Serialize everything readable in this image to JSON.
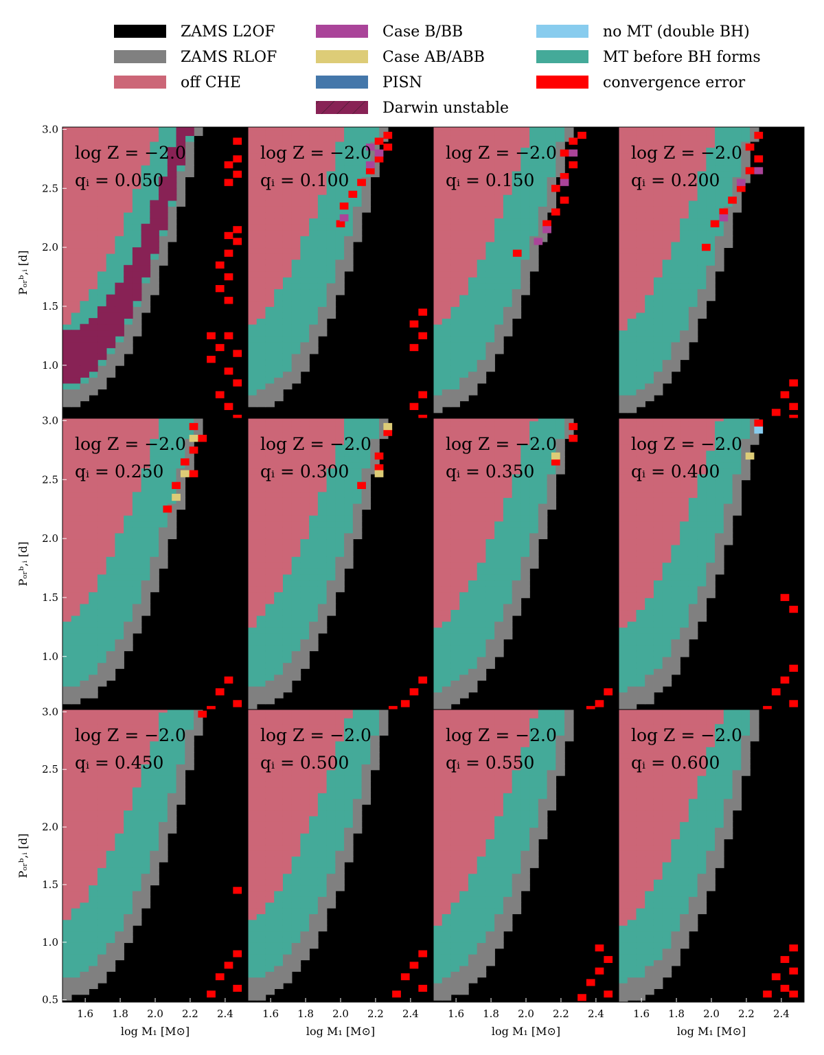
{
  "legend": [
    {
      "key": "zams_l2of",
      "label": "ZAMS L2OF",
      "color": "#000000"
    },
    {
      "key": "zams_rlof",
      "label": "ZAMS RLOF",
      "color": "#808080"
    },
    {
      "key": "off_che",
      "label": "off CHE",
      "color": "#cc6677"
    },
    {
      "key": "case_b",
      "label": "Case B/BB",
      "color": "#aa4499"
    },
    {
      "key": "case_ab",
      "label": "Case AB/ABB",
      "color": "#ddcc77"
    },
    {
      "key": "pisn",
      "label": "PISN",
      "color": "#4477aa"
    },
    {
      "key": "darwin",
      "label": "Darwin unstable",
      "color": "#882255"
    },
    {
      "key": "no_mt",
      "label": "no MT (double BH)",
      "color": "#88ccee"
    },
    {
      "key": "mt_before_bh",
      "label": "MT before BH forms",
      "color": "#44aa99"
    },
    {
      "key": "conv_error",
      "label": "convergence error",
      "color": "#ff0000"
    }
  ],
  "chart_data": {
    "type": "heatmap",
    "x_label": "log M₁ [M⊙]",
    "y_label": "Pₒᵣᵇ,ᵢ [d]",
    "x_range": [
      1.47,
      2.53
    ],
    "y_range": [
      0.48,
      3.02
    ],
    "x_ticks": [
      "1.6",
      "1.8",
      "2.0",
      "2.2",
      "2.4"
    ],
    "x_tick_values": [
      1.6,
      1.8,
      2.0,
      2.2,
      2.4
    ],
    "y_ticks_top": [
      "1.0",
      "1.5",
      "2.0",
      "2.5",
      "3.0"
    ],
    "y_ticks_bottom": [
      "0.5",
      "1.0",
      "1.5",
      "2.0",
      "2.5",
      "3.0"
    ],
    "y_tick_values_top": [
      1.0,
      1.5,
      2.0,
      2.5,
      3.0
    ],
    "y_tick_values_bottom": [
      0.5,
      1.0,
      1.5,
      2.0,
      2.5,
      3.0
    ],
    "grid": false,
    "legend_position": "top",
    "panels": [
      {
        "logZ": "log Z = −2.0",
        "q": "qᵢ = 0.050",
        "q_value": 0.05,
        "darwin": true,
        "errors": [
          [
            2.47,
            2.9
          ],
          [
            2.47,
            2.75
          ],
          [
            2.42,
            2.7
          ],
          [
            2.47,
            2.62
          ],
          [
            2.42,
            2.55
          ],
          [
            2.47,
            2.15
          ],
          [
            2.42,
            2.1
          ],
          [
            2.47,
            2.05
          ],
          [
            2.42,
            1.95
          ],
          [
            2.37,
            1.85
          ],
          [
            2.42,
            1.75
          ],
          [
            2.37,
            1.65
          ],
          [
            2.42,
            1.55
          ],
          [
            2.32,
            1.25
          ],
          [
            2.42,
            1.25
          ],
          [
            2.37,
            1.15
          ],
          [
            2.47,
            1.1
          ],
          [
            2.32,
            1.05
          ],
          [
            2.42,
            0.95
          ],
          [
            2.47,
            0.85
          ],
          [
            2.37,
            0.75
          ],
          [
            2.42,
            0.65
          ],
          [
            2.47,
            0.55
          ]
        ],
        "caseB": []
      },
      {
        "logZ": "log Z = −2.0",
        "q": "qᵢ = 0.100",
        "q_value": 0.1,
        "darwin": false,
        "errors": [
          [
            2.27,
            2.95
          ],
          [
            2.22,
            2.9
          ],
          [
            2.27,
            2.85
          ],
          [
            2.22,
            2.75
          ],
          [
            2.17,
            2.65
          ],
          [
            2.12,
            2.55
          ],
          [
            2.07,
            2.45
          ],
          [
            2.02,
            2.35
          ],
          [
            2.0,
            2.2
          ],
          [
            2.47,
            1.45
          ],
          [
            2.42,
            1.35
          ],
          [
            2.47,
            1.25
          ],
          [
            2.42,
            1.15
          ],
          [
            2.47,
            0.75
          ],
          [
            2.42,
            0.65
          ],
          [
            2.47,
            0.55
          ]
        ],
        "caseB": [
          [
            2.17,
            2.85
          ],
          [
            2.22,
            2.8
          ],
          [
            2.17,
            2.7
          ],
          [
            2.02,
            2.25
          ]
        ]
      },
      {
        "logZ": "log Z = −2.0",
        "q": "qᵢ = 0.150",
        "q_value": 0.15,
        "darwin": false,
        "errors": [
          [
            2.32,
            2.95
          ],
          [
            2.27,
            2.9
          ],
          [
            2.22,
            2.8
          ],
          [
            2.27,
            2.7
          ],
          [
            2.22,
            2.6
          ],
          [
            2.17,
            2.5
          ],
          [
            2.22,
            2.4
          ],
          [
            2.17,
            2.3
          ],
          [
            2.12,
            2.2
          ],
          [
            1.95,
            1.95
          ]
        ],
        "caseB": [
          [
            2.27,
            2.8
          ],
          [
            2.22,
            2.55
          ],
          [
            2.12,
            2.15
          ],
          [
            2.07,
            2.05
          ]
        ]
      },
      {
        "logZ": "log Z = −2.0",
        "q": "qᵢ = 0.200",
        "q_value": 0.2,
        "darwin": false,
        "errors": [
          [
            2.27,
            2.95
          ],
          [
            2.22,
            2.85
          ],
          [
            2.27,
            2.75
          ],
          [
            2.22,
            2.65
          ],
          [
            2.17,
            2.5
          ],
          [
            2.12,
            2.4
          ],
          [
            2.07,
            2.3
          ],
          [
            2.02,
            2.2
          ],
          [
            1.97,
            2.0
          ],
          [
            2.47,
            0.85
          ],
          [
            2.42,
            0.75
          ],
          [
            2.47,
            0.65
          ],
          [
            2.37,
            0.6
          ],
          [
            2.47,
            0.55
          ]
        ],
        "caseB": [
          [
            2.27,
            2.65
          ],
          [
            2.17,
            2.55
          ],
          [
            2.07,
            2.25
          ]
        ]
      },
      {
        "logZ": "log Z = −2.0",
        "q": "qᵢ = 0.250",
        "q_value": 0.25,
        "darwin": false,
        "errors": [
          [
            2.22,
            2.95
          ],
          [
            2.27,
            2.85
          ],
          [
            2.22,
            2.75
          ],
          [
            2.17,
            2.65
          ],
          [
            2.22,
            2.55
          ],
          [
            2.12,
            2.45
          ],
          [
            2.07,
            2.25
          ],
          [
            2.42,
            0.8
          ],
          [
            2.37,
            0.7
          ],
          [
            2.47,
            0.6
          ],
          [
            2.32,
            0.55
          ]
        ],
        "caseB": [],
        "caseAB": [
          [
            2.22,
            2.85
          ],
          [
            2.17,
            2.55
          ],
          [
            2.12,
            2.35
          ]
        ]
      },
      {
        "logZ": "log Z = −2.0",
        "q": "qᵢ = 0.300",
        "q_value": 0.3,
        "darwin": false,
        "errors": [
          [
            2.27,
            2.9
          ],
          [
            2.22,
            2.7
          ],
          [
            2.22,
            2.6
          ],
          [
            2.12,
            2.45
          ],
          [
            2.47,
            0.8
          ],
          [
            2.42,
            0.7
          ],
          [
            2.37,
            0.6
          ],
          [
            2.3,
            0.55
          ]
        ],
        "caseB": [],
        "caseAB": [
          [
            2.27,
            2.95
          ],
          [
            2.22,
            2.55
          ]
        ]
      },
      {
        "logZ": "log Z = −2.0",
        "q": "qᵢ = 0.350",
        "q_value": 0.35,
        "darwin": false,
        "errors": [
          [
            2.27,
            2.95
          ],
          [
            2.27,
            2.85
          ],
          [
            2.17,
            2.65
          ],
          [
            2.47,
            0.7
          ],
          [
            2.42,
            0.6
          ],
          [
            2.37,
            0.55
          ]
        ],
        "caseB": [],
        "caseAB": [
          [
            2.17,
            2.7
          ]
        ]
      },
      {
        "logZ": "log Z = −2.0",
        "q": "qᵢ = 0.400",
        "q_value": 0.4,
        "darwin": false,
        "errors": [
          [
            2.27,
            2.98
          ],
          [
            2.42,
            1.5
          ],
          [
            2.47,
            1.4
          ],
          [
            2.47,
            0.9
          ],
          [
            2.42,
            0.8
          ],
          [
            2.37,
            0.7
          ],
          [
            2.47,
            0.6
          ],
          [
            2.32,
            0.55
          ]
        ],
        "caseB": [],
        "caseAB": [
          [
            2.22,
            2.7
          ]
        ],
        "noMT": [
          [
            2.27,
            2.92
          ]
        ]
      },
      {
        "logZ": "log Z = −2.0",
        "q": "qᵢ = 0.450",
        "q_value": 0.45,
        "darwin": false,
        "errors": [
          [
            2.27,
            2.98
          ],
          [
            2.47,
            1.45
          ],
          [
            2.47,
            0.9
          ],
          [
            2.42,
            0.8
          ],
          [
            2.37,
            0.7
          ],
          [
            2.47,
            0.6
          ],
          [
            2.32,
            0.55
          ]
        ],
        "caseB": []
      },
      {
        "logZ": "log Z = −2.0",
        "q": "qᵢ = 0.500",
        "q_value": 0.5,
        "darwin": false,
        "errors": [
          [
            2.47,
            0.9
          ],
          [
            2.42,
            0.8
          ],
          [
            2.37,
            0.7
          ],
          [
            2.47,
            0.6
          ],
          [
            2.32,
            0.55
          ]
        ],
        "caseB": []
      },
      {
        "logZ": "log Z = −2.0",
        "q": "qᵢ = 0.550",
        "q_value": 0.55,
        "darwin": false,
        "errors": [
          [
            2.42,
            0.95
          ],
          [
            2.47,
            0.85
          ],
          [
            2.42,
            0.75
          ],
          [
            2.37,
            0.65
          ],
          [
            2.47,
            0.55
          ],
          [
            2.32,
            0.52
          ]
        ],
        "caseB": []
      },
      {
        "logZ": "log Z = −2.0",
        "q": "qᵢ = 0.600",
        "q_value": 0.6,
        "darwin": false,
        "errors": [
          [
            2.47,
            0.95
          ],
          [
            2.42,
            0.85
          ],
          [
            2.47,
            0.75
          ],
          [
            2.37,
            0.7
          ],
          [
            2.42,
            0.6
          ],
          [
            2.47,
            0.55
          ],
          [
            2.32,
            0.55
          ]
        ],
        "caseB": []
      }
    ]
  }
}
